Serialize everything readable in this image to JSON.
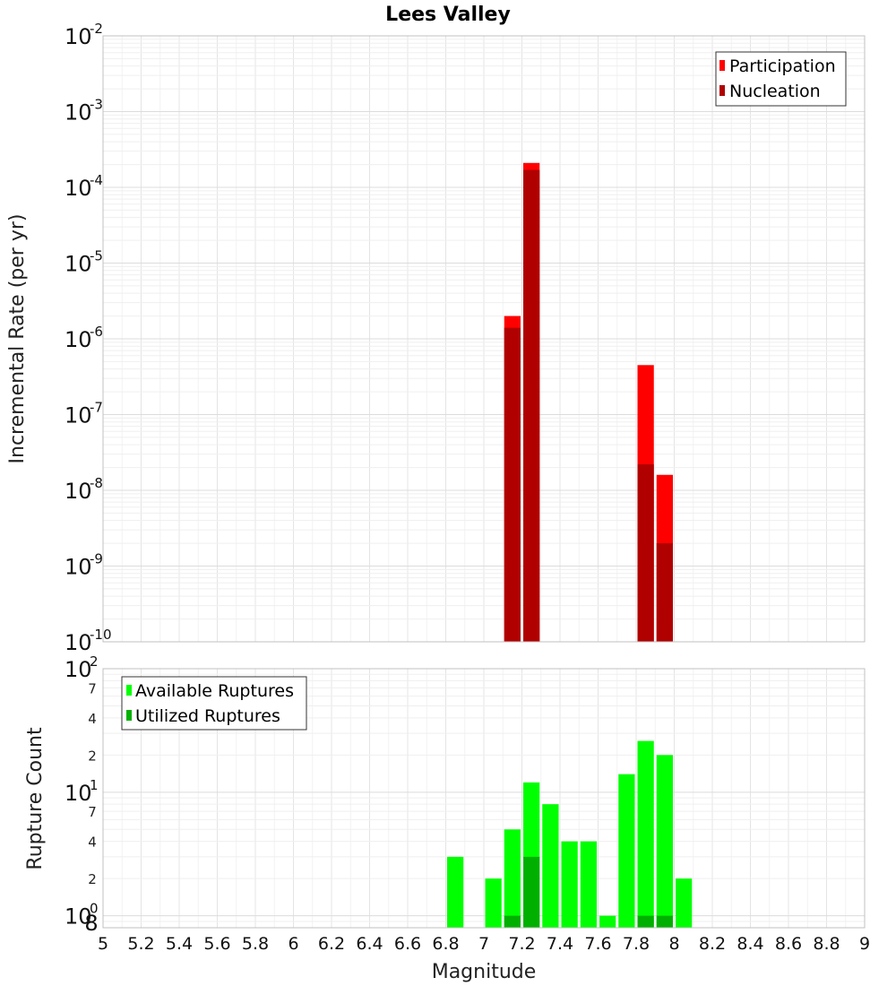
{
  "chart_data": [
    {
      "type": "bar",
      "title": "Lees Valley",
      "ylabel": "Incremental Rate (per yr)",
      "xlabel": "",
      "xlim": [
        5,
        9
      ],
      "ylim": [
        1e-10,
        0.01
      ],
      "yscale": "log",
      "grid": true,
      "legend_position": "top-right",
      "bar_width": 0.1,
      "y_major_ticks": [
        {
          "base": "10",
          "exp": "-10",
          "value": 1e-10
        },
        {
          "base": "10",
          "exp": "-9",
          "value": 1e-09
        },
        {
          "base": "10",
          "exp": "-8",
          "value": 1e-08
        },
        {
          "base": "10",
          "exp": "-7",
          "value": 1e-07
        },
        {
          "base": "10",
          "exp": "-6",
          "value": 1e-06
        },
        {
          "base": "10",
          "exp": "-5",
          "value": 1e-05
        },
        {
          "base": "10",
          "exp": "-4",
          "value": 0.0001
        },
        {
          "base": "10",
          "exp": "-3",
          "value": 0.001
        },
        {
          "base": "10",
          "exp": "-2",
          "value": 0.01
        }
      ],
      "series": [
        {
          "name": "Participation",
          "color": "#ff0000",
          "x": [
            7.15,
            7.25,
            7.85,
            7.95
          ],
          "values": [
            2e-06,
            0.00021,
            4.5e-07,
            1.6e-08
          ]
        },
        {
          "name": "Nucleation",
          "color": "#b00000",
          "x": [
            7.15,
            7.25,
            7.85,
            7.95
          ],
          "values": [
            1.4e-06,
            0.00017,
            2.2e-08,
            2e-09
          ]
        }
      ]
    },
    {
      "type": "bar",
      "title": "",
      "ylabel": "Rupture Count",
      "xlabel": "Magnitude",
      "xlim": [
        5,
        9
      ],
      "ylim": [
        0.8,
        100
      ],
      "yscale": "log",
      "grid": true,
      "legend_position": "top-left",
      "bar_width": 0.1,
      "x_ticks": [
        "5",
        "5.2",
        "5.4",
        "5.6",
        "5.8",
        "6",
        "6.2",
        "6.4",
        "6.6",
        "6.8",
        "7",
        "7.2",
        "7.4",
        "7.6",
        "7.8",
        "8",
        "8.2",
        "8.4",
        "8.6",
        "8.8",
        "9"
      ],
      "y_major_ticks": [
        {
          "base": "10",
          "exp": "0",
          "value": 1
        },
        {
          "base": "10",
          "exp": "1",
          "value": 10
        },
        {
          "base": "10",
          "exp": "2",
          "value": 100
        }
      ],
      "y_minor_ticks": [
        {
          "label": "8",
          "value": 0.8
        },
        {
          "label": "2",
          "value": 2
        },
        {
          "label": "4",
          "value": 4
        },
        {
          "label": "7",
          "value": 7
        },
        {
          "label": "2",
          "value": 20
        },
        {
          "label": "4",
          "value": 40
        },
        {
          "label": "7",
          "value": 70
        }
      ],
      "series": [
        {
          "name": "Available Ruptures",
          "color": "#00ff00",
          "x": [
            6.85,
            7.05,
            7.15,
            7.25,
            7.35,
            7.45,
            7.55,
            7.65,
            7.75,
            7.85,
            7.95,
            8.05
          ],
          "values": [
            3,
            2,
            5,
            12,
            8,
            4,
            4,
            1,
            14,
            26,
            20,
            2
          ]
        },
        {
          "name": "Utilized Ruptures",
          "color": "#00b000",
          "x": [
            7.15,
            7.25,
            7.85,
            7.95
          ],
          "values": [
            1,
            3,
            1,
            1
          ]
        }
      ]
    }
  ]
}
